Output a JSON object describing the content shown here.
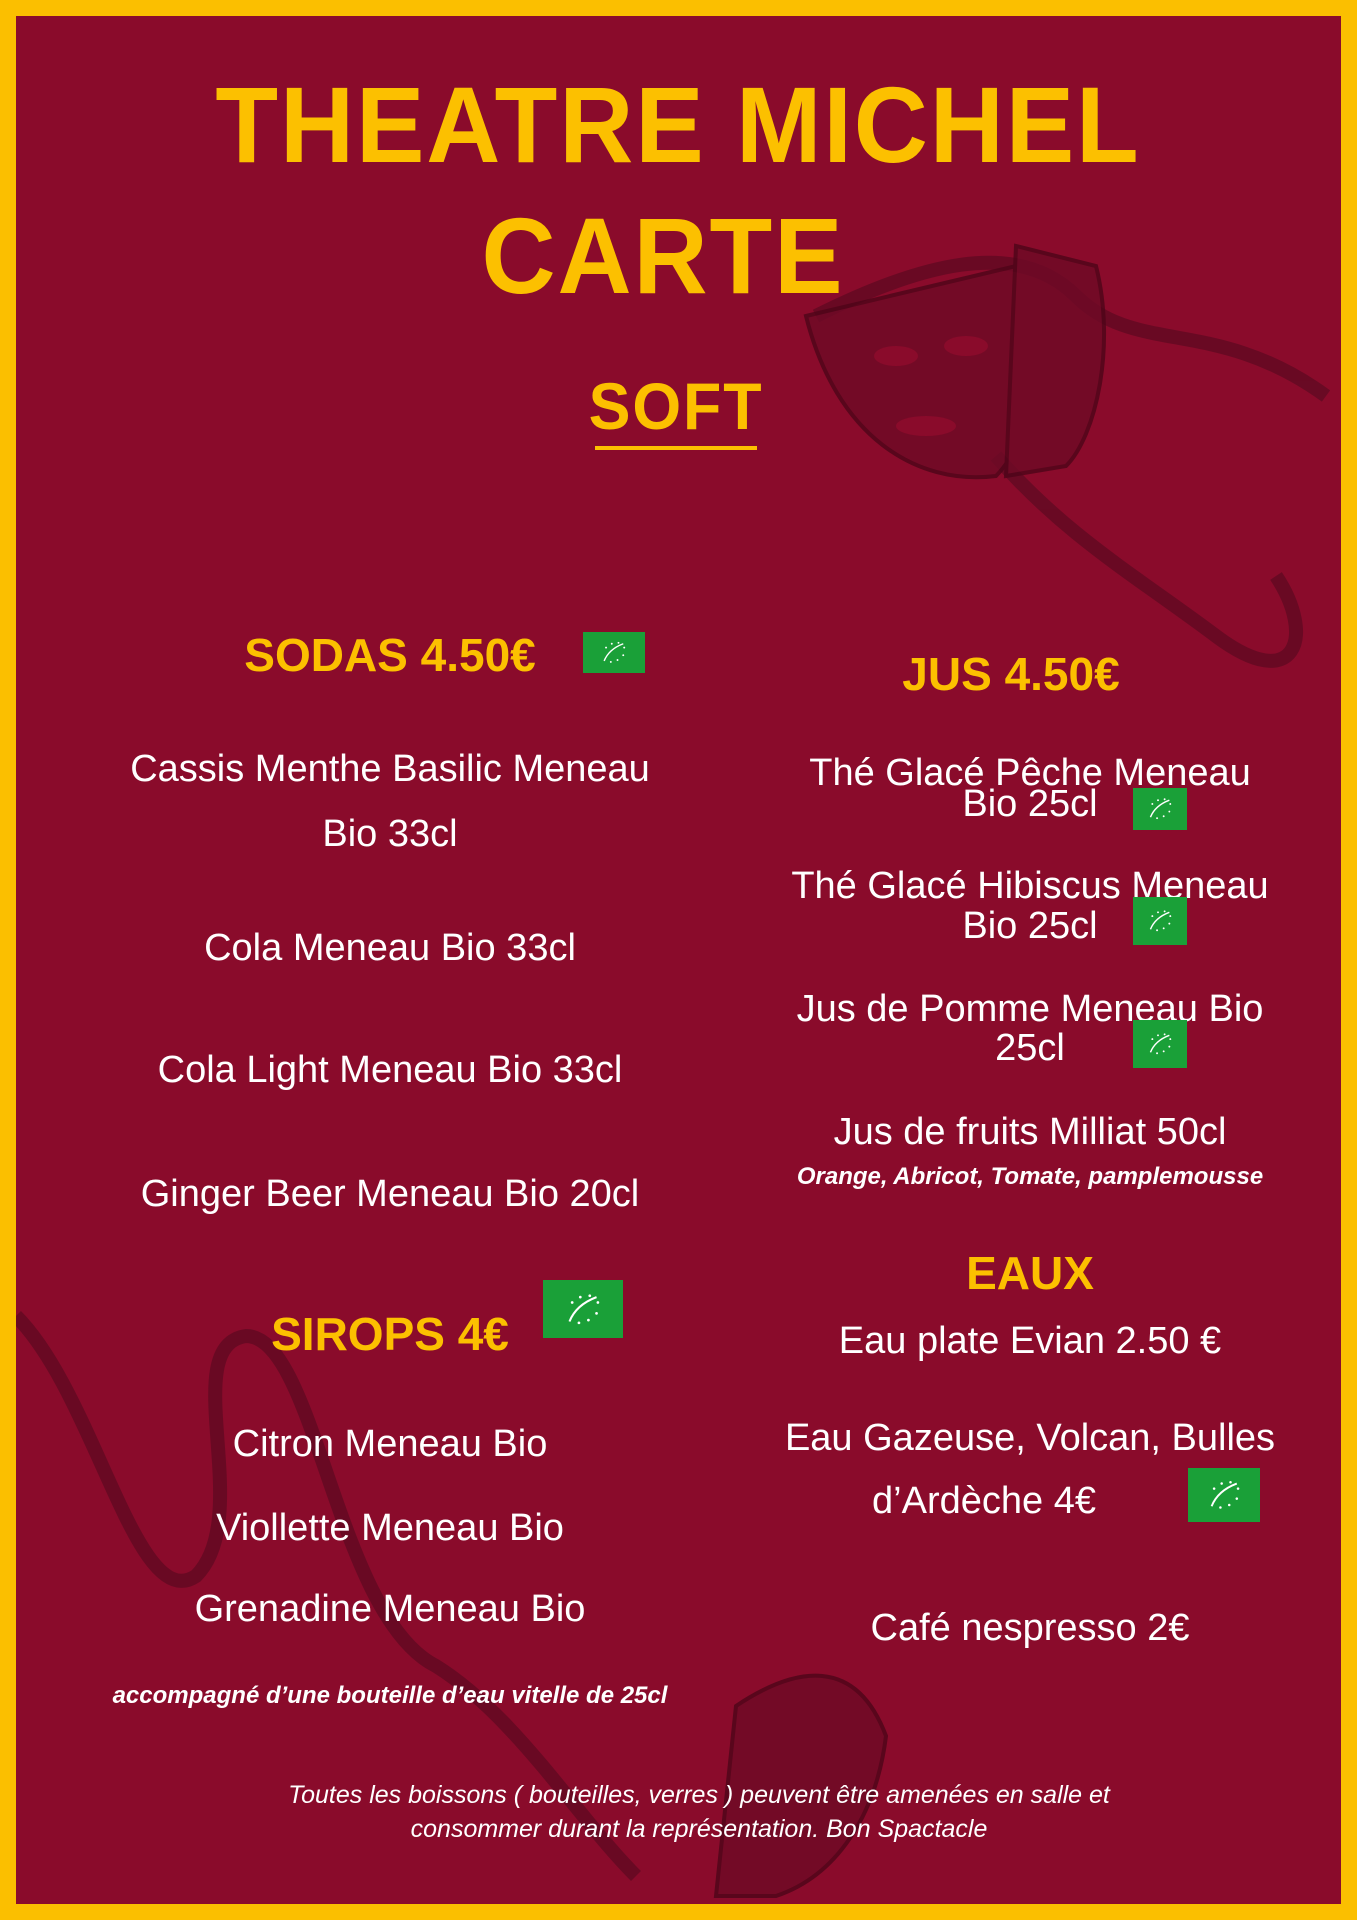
{
  "header": {
    "title_line1": "THEATRE MICHEL",
    "title_line2": "CARTE",
    "section": "SOFT"
  },
  "colors": {
    "background": "#8a0b2b",
    "border": "#fbbf00",
    "accent": "#fcc000",
    "bio_label": "#1aa038"
  },
  "sodas": {
    "heading": "SODAS 4.50€",
    "icon": "eu-organic-leaf-icon",
    "items": [
      "Cassis Menthe Basilic Meneau",
      "Bio 33cl",
      "Cola Meneau Bio 33cl",
      "Cola Light Meneau Bio 33cl",
      "Ginger Beer Meneau Bio 20cl"
    ]
  },
  "sirops": {
    "heading": "SIROPS 4€",
    "icon": "eu-organic-leaf-icon",
    "items": [
      "Citron Meneau Bio",
      "Viollette Meneau Bio",
      "Grenadine Meneau Bio"
    ],
    "note": "accompagné d’une bouteille d’eau vitelle de 25cl"
  },
  "jus": {
    "heading": "JUS 4.50€",
    "items": [
      {
        "line1": "Thé Glacé  Pêche Meneau",
        "line2": "Bio 25cl"
      },
      {
        "line1": "Thé Glacé Hibiscus Meneau",
        "line2": "Bio 25cl"
      },
      {
        "line1": "Jus de Pomme Meneau Bio",
        "line2": "25cl"
      },
      {
        "line1": "Jus de fruits Milliat  50cl",
        "line2": "Orange, Abricot, Tomate, pamplemousse"
      }
    ]
  },
  "eaux": {
    "heading": "EAUX",
    "items": [
      "Eau plate Evian 2.50 €",
      "Eau Gazeuse, Volcan, Bulles",
      "d’Ardèche 4€",
      "Café nespresso 2€"
    ]
  },
  "footer": {
    "line1": "Toutes les boissons ( bouteilles, verres ) peuvent être amenées en salle et",
    "line2": "consommer durant la représentation. Bon Spactacle"
  }
}
